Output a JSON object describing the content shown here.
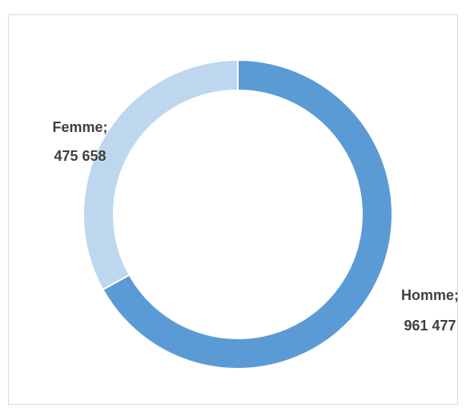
{
  "chart_data": {
    "type": "donut",
    "categories": [
      "Homme;",
      "Femme;"
    ],
    "values": [
      961477,
      475658
    ],
    "value_labels": [
      "961 477",
      "475 658"
    ],
    "colors": [
      "#5b9bd5",
      "#bdd7ee"
    ]
  }
}
